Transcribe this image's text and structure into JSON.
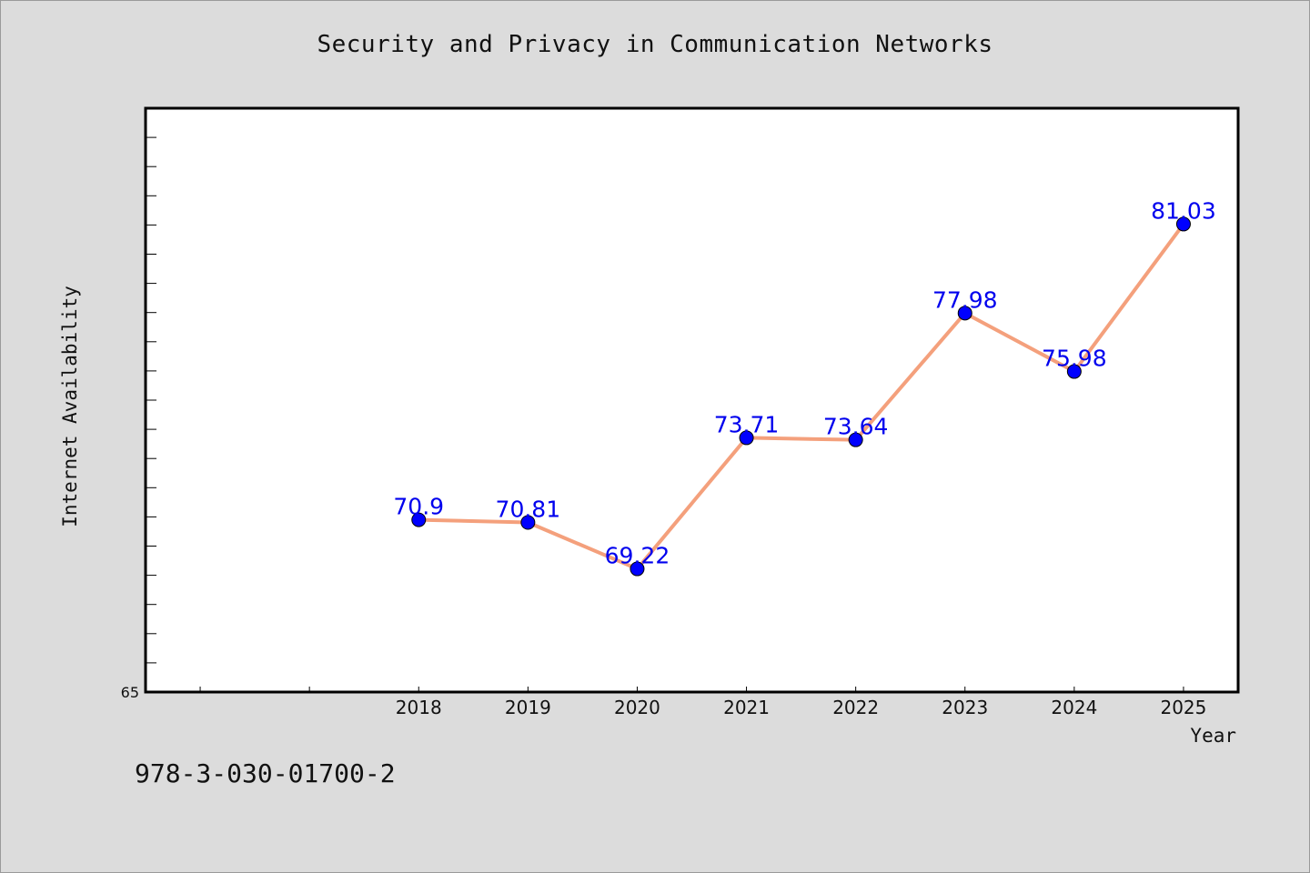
{
  "title": "Security and Privacy in Communication Networks",
  "isbn": "978-3-030-01700-2",
  "colors": {
    "background": "#dcdcdc",
    "plot_background": "#ffffff",
    "line": "#f4a07c",
    "marker": "#0000ff",
    "data_label": "#0000ee"
  },
  "chart_data": {
    "type": "line",
    "xlabel": "Year",
    "ylabel": "Internet Availability",
    "x": [
      2018,
      2019,
      2020,
      2021,
      2022,
      2023,
      2024,
      2025
    ],
    "x_tick_labels": [
      "2018",
      "2019",
      "2020",
      "2021",
      "2022",
      "2023",
      "2024",
      "2025"
    ],
    "x_range": [
      2015.5,
      2025.5
    ],
    "values": [
      70.9,
      70.81,
      69.22,
      73.71,
      73.64,
      77.98,
      75.98,
      81.03
    ],
    "data_labels": [
      "70.9",
      "70.81",
      "69.22",
      "73.71",
      "73.64",
      "77.98",
      "75.98",
      "81.03"
    ],
    "ylim": [
      65,
      85
    ],
    "y_tick_labels": [
      "65"
    ],
    "grid": false,
    "legend": "none"
  }
}
